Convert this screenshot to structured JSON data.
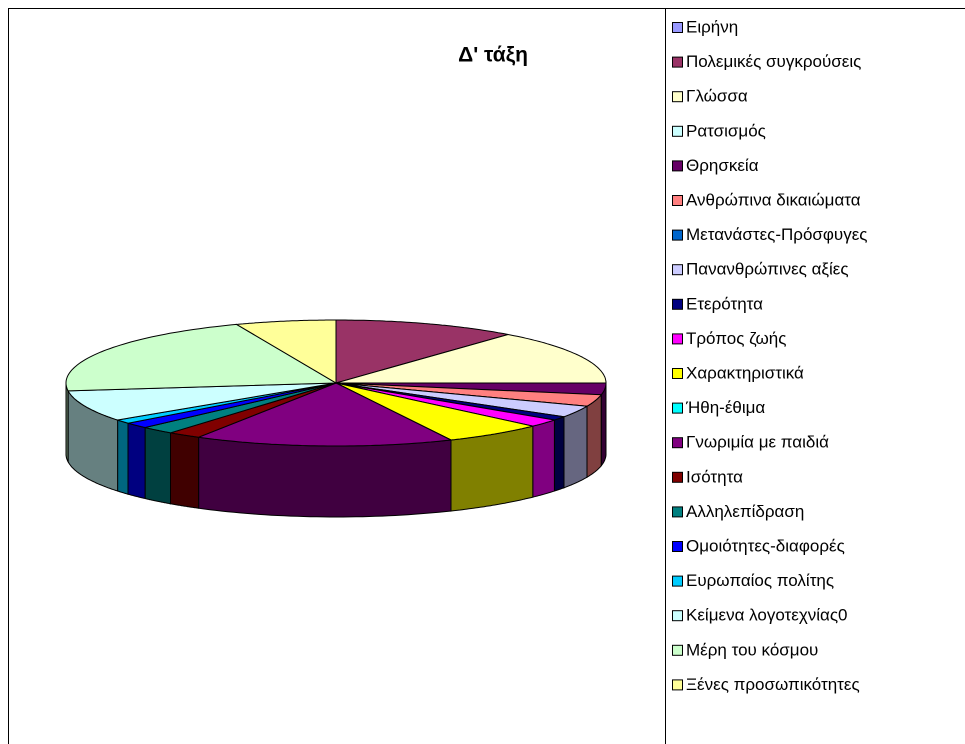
{
  "chart_data": {
    "type": "pie",
    "title": "Δ' τάξη",
    "categories": [
      "Ειρήνη",
      "Πολεμικές συγκρούσεις",
      "Γλώσσα",
      "Ρατσισμός",
      "Θρησκεία",
      "Ανθρώπινα δικαιώματα",
      "Μετανάστες-Πρόσφυγες",
      "Πανανθρώπινες αξίες",
      "Ετερότητα",
      "Τρόπος ζωής",
      "Χαρακτηριστικά",
      "Ήθη-έθιμα",
      "Γνωριμία με παιδιά",
      "Ισότητα",
      "Αλληλεπίδραση",
      "Ομοιότητες-διαφορές",
      "Ευρωπαίος πολίτης",
      "Κείμενα λογοτεχνίας0",
      "Μέρη του κόσμου",
      "Ξένες προσωπικότητες"
    ],
    "values": [
      0,
      11,
      14,
      0,
      3,
      3,
      0,
      3,
      1,
      2,
      6,
      0,
      15.5,
      2,
      2,
      1.5,
      1,
      8,
      21,
      6
    ],
    "colors": [
      "#9999FF",
      "#993366",
      "#FFFFCC",
      "#CCFFFF",
      "#660066",
      "#FF8080",
      "#0066CC",
      "#CCCCFF",
      "#000080",
      "#FF00FF",
      "#FFFF00",
      "#00FFFF",
      "#800080",
      "#800000",
      "#008080",
      "#0000FF",
      "#00CCFF",
      "#CCFFFF",
      "#CCFFCC",
      "#FFFF99"
    ],
    "legend": "right"
  }
}
